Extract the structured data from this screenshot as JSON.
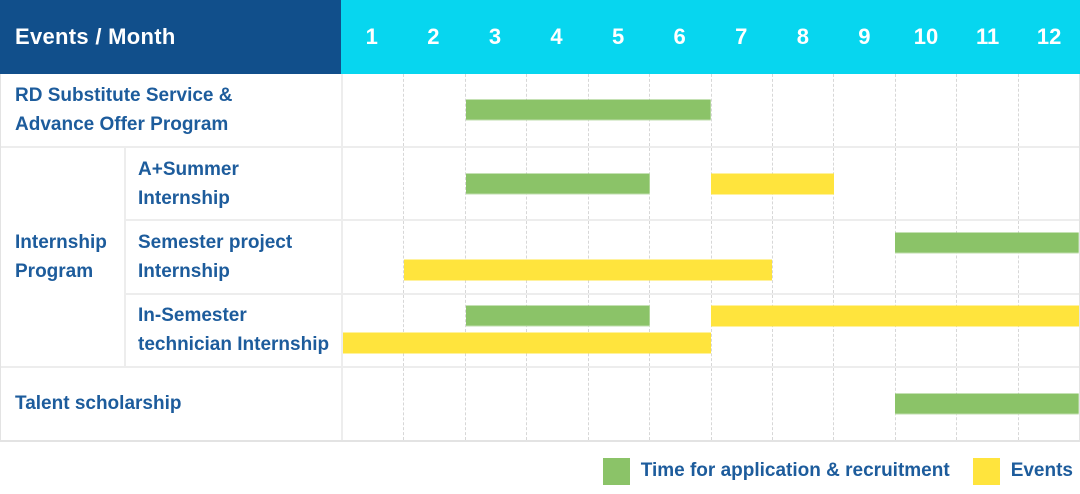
{
  "header": {
    "title": "Events / Month",
    "months": [
      "1",
      "2",
      "3",
      "4",
      "5",
      "6",
      "7",
      "8",
      "9",
      "10",
      "11",
      "12"
    ]
  },
  "colors": {
    "title_bg": "#114f8b",
    "months_bg": "#07d6ef",
    "header_text": "#ffffff",
    "label_text": "#1d5c9c",
    "application": "#8bc368",
    "events": "#ffe43d"
  },
  "legend": {
    "items": [
      {
        "series": "application",
        "label": "Time for application & recruitment"
      },
      {
        "series": "events",
        "label": "Events"
      }
    ]
  },
  "chart_data": {
    "type": "bar",
    "subtype": "gantt-timeline",
    "title": "Events / Month",
    "xlabel": "Month",
    "x_ticks": [
      1,
      2,
      3,
      4,
      5,
      6,
      7,
      8,
      9,
      10,
      11,
      12
    ],
    "x_range": [
      1,
      12
    ],
    "grid": "vertical-dashed",
    "legend_position": "bottom-right",
    "series_legend": {
      "application": "Time for application & recruitment",
      "events": "Events"
    },
    "groups": [
      {
        "name": "Internship Program",
        "label_lines": [
          "Internship",
          "Program"
        ]
      }
    ],
    "rows": [
      {
        "group": "",
        "label": "RD Substitute Service & Advance Offer Program",
        "label_lines": [
          "RD Substitute Service &",
          "Advance Offer Program"
        ],
        "bars": [
          {
            "series": "application",
            "start_month": 3,
            "end_month": 6,
            "lane": "center"
          }
        ]
      },
      {
        "group": "Internship Program",
        "label": "A+Summer Internship",
        "label_lines": [
          "A+Summer",
          "Internship"
        ],
        "bars": [
          {
            "series": "application",
            "start_month": 3,
            "end_month": 5,
            "lane": "center"
          },
          {
            "series": "events",
            "start_month": 7,
            "end_month": 8,
            "lane": "center"
          }
        ]
      },
      {
        "group": "Internship Program",
        "label": "Semester project Internship",
        "label_lines": [
          "Semester project",
          "Internship"
        ],
        "bars": [
          {
            "series": "application",
            "start_month": 10,
            "end_month": 12,
            "lane": "upper"
          },
          {
            "series": "events",
            "start_month": 2,
            "end_month": 7,
            "lane": "lower"
          }
        ]
      },
      {
        "group": "Internship Program",
        "label": "In-Semester technician Internship",
        "label_lines": [
          "In-Semester",
          "technician Internship"
        ],
        "bars": [
          {
            "series": "application",
            "start_month": 3,
            "end_month": 5,
            "lane": "upper"
          },
          {
            "series": "events",
            "start_month": 7,
            "end_month": 12,
            "lane": "upper"
          },
          {
            "series": "events",
            "start_month": 1,
            "end_month": 6,
            "lane": "lower"
          }
        ]
      },
      {
        "group": "",
        "label": "Talent scholarship",
        "label_lines": [
          "Talent scholarship"
        ],
        "bars": [
          {
            "series": "application",
            "start_month": 10,
            "end_month": 12,
            "lane": "center"
          }
        ]
      }
    ]
  }
}
